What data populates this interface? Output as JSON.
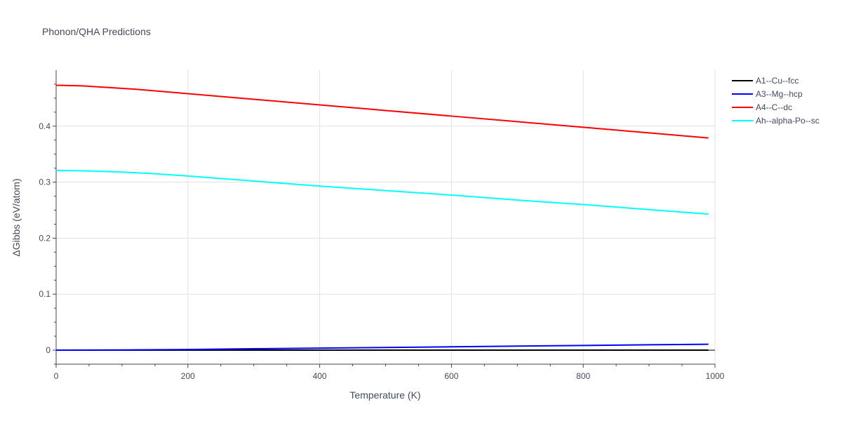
{
  "chart_data": {
    "type": "line",
    "title": "Phonon/QHA Predictions",
    "xlabel": "Temperature (K)",
    "ylabel": "ΔGibbs (eV/atom)",
    "xlim": [
      0,
      1000
    ],
    "ylim": [
      -0.025,
      0.5
    ],
    "x_ticks": [
      0,
      200,
      400,
      600,
      800,
      1000
    ],
    "x_tick_labels": [
      "0",
      "200",
      "400",
      "600",
      "800",
      "1000"
    ],
    "y_ticks": [
      0,
      0.1,
      0.2,
      0.3,
      0.4
    ],
    "y_tick_labels": [
      "0",
      "0.1",
      "0.2",
      "0.3",
      "0.4"
    ],
    "grid": true,
    "legend_position": "top-right",
    "series": [
      {
        "name": "A1--Cu--fcc",
        "color": "#000000",
        "x": [
          0,
          200,
          400,
          600,
          800,
          990
        ],
        "y": [
          0,
          0,
          0,
          0,
          0,
          0
        ]
      },
      {
        "name": "A3--Mg--hcp",
        "color": "#0000ff",
        "x": [
          0,
          100,
          200,
          300,
          400,
          500,
          600,
          700,
          800,
          900,
          990
        ],
        "y": [
          0,
          0.0003,
          0.0012,
          0.0025,
          0.0037,
          0.0048,
          0.006,
          0.0072,
          0.0084,
          0.0096,
          0.0105
        ]
      },
      {
        "name": "A4--C--dc",
        "color": "#ff0000",
        "x": [
          0,
          40,
          80,
          120,
          200,
          300,
          400,
          500,
          600,
          700,
          800,
          900,
          990
        ],
        "y": [
          0.473,
          0.472,
          0.469,
          0.466,
          0.458,
          0.448,
          0.438,
          0.428,
          0.418,
          0.408,
          0.398,
          0.388,
          0.379
        ]
      },
      {
        "name": "Ah--alpha-Po--sc",
        "color": "#00ffff",
        "x": [
          0,
          50,
          100,
          150,
          200,
          300,
          400,
          500,
          600,
          700,
          800,
          900,
          990
        ],
        "y": [
          0.321,
          0.32,
          0.318,
          0.315,
          0.311,
          0.302,
          0.293,
          0.285,
          0.277,
          0.268,
          0.26,
          0.251,
          0.243
        ]
      }
    ]
  }
}
